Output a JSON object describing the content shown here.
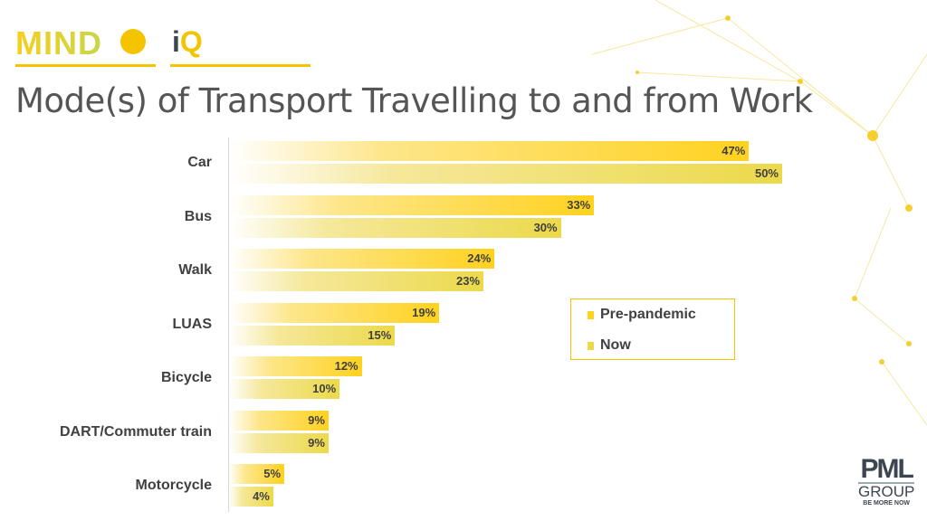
{
  "header": {
    "brand1": "MIND",
    "brand2_i": "i",
    "brand2_q": "Q"
  },
  "footer": {
    "logo_main": "PML",
    "logo_sub": "GROUP",
    "tagline": "BE MORE NOW"
  },
  "colors": {
    "pre": "#ffd21f",
    "now": "#ecd94a",
    "accent": "#f5c400"
  },
  "chart_data": {
    "type": "bar",
    "orientation": "horizontal",
    "title": "Mode(s) of Transport Travelling to and from Work",
    "categories": [
      "Car",
      "Bus",
      "Walk",
      "LUAS",
      "Bicycle",
      "DART/Commuter train",
      "Motorcycle"
    ],
    "series": [
      {
        "name": "Pre-pandemic",
        "values": [
          47,
          33,
          24,
          19,
          12,
          9,
          5
        ]
      },
      {
        "name": "Now",
        "values": [
          50,
          30,
          23,
          15,
          10,
          9,
          4
        ]
      }
    ],
    "unit": "%",
    "xlim": [
      0,
      50
    ],
    "legend_position": "right",
    "grid": false
  }
}
